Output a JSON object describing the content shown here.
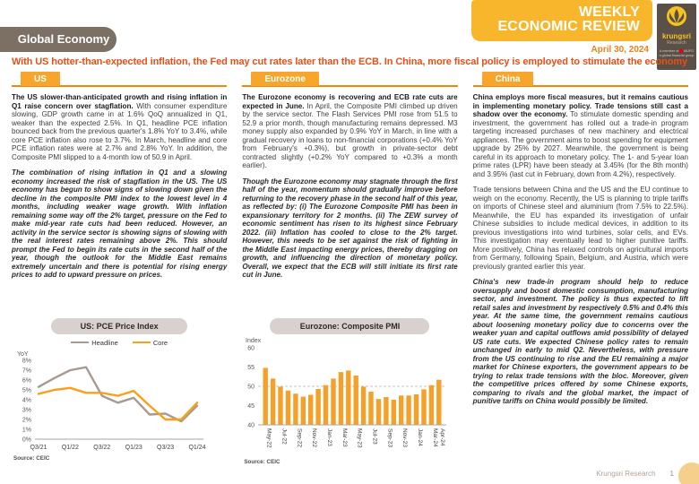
{
  "header": {
    "badge": "Global Economy",
    "banner_line1": "WEEKLY",
    "banner_line2": "ECONOMIC REVIEW",
    "date": "April 30, 2024",
    "headline": "With US hotter-than-expected inflation, the Fed may cut rates later than the ECB. In China, more fiscal policy is employed to stimulate the economy",
    "logo": {
      "brand": "krungsri",
      "sub": "Research",
      "tagline_prefix": "A member of",
      "tagline_brand": "MUFG",
      "tagline_suffix": "a global financial group"
    }
  },
  "columns": {
    "us": {
      "tab": "US",
      "p1_lead": "The US slower-than-anticipated growth and rising inflation in Q1 raise concern over stagflation.",
      "p1_rest": "With consumer expenditure slowing, GDP growth came in at 1.6% QoQ annualized in Q1, weaker than the expected 2.5%. In Q1, headline PCE inflation bounced back from the previous quarter's 1.8% YoY to 3.4%, while core PCE inflation also rose to 3.7%. In March, headline and core PCE inflation rates were at 2.7% and 2.8% YoY. In addition, the Composite PMI slipped to a 4-month low of 50.9 in April.",
      "p2": "The combination of rising inflation in Q1 and a slowing economy increased the risk of stagflation in the US. The US economy has begun to show signs of slowing down given the decline in the composite PMI index to the lowest level in 4 months, including weaker wage growth. With inflation remaining some way off the 2% target, pressure on the Fed to make mid-year rate cuts had been reduced. However, an activity in the service sector is showing signs of slowing with the real interest rates remaining above 2%. This should prompt the Fed to begin its rate cuts in the second half of the year, though the outlook for the Middle East remains extremely uncertain and there is potential for rising energy prices to add to upward pressure on prices."
    },
    "eurozone": {
      "tab": "Eurozone",
      "p1_lead": "The Eurozone economy is recovering and ECB rate cuts are expected in June.",
      "p1_rest": "In April, the Composite PMI climbed up driven by the service sector. The Flash Services PMI rose from 51.5 to 52.9 a prior month, though manufacturing remains depressed. M3 money supply also expanded by 0.9% YoY in March, in line with a gradual recovery in loans to non-financial corporations (+0.4% YoY from February's +0.3%), but growth in private-sector debt contracted slightly (+0.2% YoY compared to +0.3% a month earlier).",
      "p2": "Though the Eurozone economy may stagnate through the first half of the year, momentum should gradually improve before returning to the recovery phase in the second half of this year, as reflected by: (i) The Eurozone Composite PMI has been in expansionary territory for 2 months. (ii) The ZEW survey of economic sentiment has risen to its highest since February 2022. (iii) Inflation has cooled to close to the 2% target. However, this needs to be set against the risk of fighting in the Middle East impacting energy prices, thereby dragging on growth, and influencing the direction of monetary policy. Overall, we expect that the ECB will still initiate its first rate cut in June."
    },
    "china": {
      "tab": "China",
      "p1_lead": "China employs more fiscal measures, but it remains cautious in implementing monetary policy. Trade tensions still cast a shadow over the economy.",
      "p1_rest": "To stimulate domestic spending and investment, the government has rolled out a trade-in program targeting increased purchases of new machinery and electrical appliances. The government aims to boost spending for equipment upgrade by 25% by 2027. Meanwhile, the government is being careful in its approach to monetary policy. The 1- and 5-year loan prime rates (LPR) have been steady at 3.45% (for the 8th month) and 3.95% (last cut in February, down from 4.2%), respectively.",
      "p2": "Trade tensions between China and the US and the EU continue to weigh on the economy. Recently, the US is planning to triple tariffs on imports of Chinese steel and aluminium (from 7.5% to 22.5%). Meanwhile, the EU has expanded its investigation of unfair Chinese subsidies to include medical devices, in addition to its previous investigations into wind turbines, solar cells, and EVs. This investigation may eventually lead to higher punitive tariffs. More positively, China has relaxed controls on agricultural imports from Germany, following Spain, Belgium, and Austria, which were previously granted earlier this year.",
      "p3": "China's new trade-in program should help to reduce oversupply and boost domestic consumption, manufacturing sector, and investment. The policy is thus expected to lift retail sales and investment by respectively 0.5% and 0.4% this year. At the same time, the government remains cautious about loosening monetary policy due to concerns over the weaker yuan and capital outflows amid possibility of delayed US rate cuts. We expected Chinese policy rates to remain unchanged in early to mid Q2. Nevertheless, with pressure from the US continuing to rise and the EU remaining a major market for Chinese exporters, the government appears to be trying to relax trade tensions with the bloc. Moreover, given the competitive prices offered by some Chinese exports, comparing to rivals and the global market, the impact of punitive tariffs on China would possibly be limited."
    }
  },
  "footer": {
    "brand": "Krungsri Research",
    "page": "1"
  },
  "colors": {
    "banner_yellow": "#F8B62C",
    "tab_yellow": "#F8A52B",
    "tab_underline": "#F08A00",
    "headline_red": "#E2511A",
    "badge_brown": "#7C7065",
    "logo_dark": "#5B5047",
    "headline_series": "#A79A93",
    "core_series": "#F7A11B",
    "bar_orange": "#F5A029",
    "pill_gray": "#D8D1CD"
  },
  "chart_data": [
    {
      "type": "line",
      "title": "US: PCE Price Index",
      "unit_label": "YoY",
      "x": [
        "Q3/21",
        "Q4/21",
        "Q1/22",
        "Q2/22",
        "Q3/22",
        "Q4/22",
        "Q1/23",
        "Q2/23",
        "Q3/23",
        "Q4/23",
        "Q1/24"
      ],
      "x_tick_labels": [
        "Q3/21",
        "Q1/22",
        "Q3/22",
        "Q1/23",
        "Q3/23",
        "Q1/24"
      ],
      "series": [
        {
          "name": "Headline",
          "color": "#A79A93",
          "values": [
            5.3,
            6.2,
            7.0,
            7.3,
            4.4,
            3.7,
            4.2,
            2.5,
            2.6,
            1.8,
            3.4
          ]
        },
        {
          "name": "Core",
          "color": "#F7A11B",
          "values": [
            4.6,
            5.0,
            5.2,
            4.7,
            4.7,
            4.4,
            4.9,
            3.4,
            2.0,
            2.0,
            3.7
          ]
        }
      ],
      "ylim": [
        0,
        8
      ],
      "ytick_step": 1,
      "ytick_suffix": "%",
      "grid": false,
      "legend_position": "top",
      "source": "Source: CEIC"
    },
    {
      "type": "bar",
      "title": "Eurozone: Composite PMI",
      "unit_label": "Index",
      "categories": [
        "May-22",
        "Jun-22",
        "Jul-22",
        "Aug-22",
        "Sep-22",
        "Oct-22",
        "Nov-22",
        "Dec-22",
        "Jan-23",
        "Feb-23",
        "Mar-23",
        "Apr-23",
        "May-23",
        "Jun-23",
        "Jul-23",
        "Aug-23",
        "Sep-23",
        "Oct-23",
        "Nov-23",
        "Dec-23",
        "Jan-24",
        "Feb-24",
        "Mar-24",
        "Apr-24"
      ],
      "x_tick_labels": [
        "May-22",
        "Jul-22",
        "Sep-22",
        "Nov-22",
        "Jan-23",
        "Mar-23",
        "May-23",
        "Jul-23",
        "Sep-23",
        "Nov-23",
        "Jan-24",
        "Mar-24",
        "Apr-24"
      ],
      "values": [
        54.8,
        52.0,
        49.9,
        48.9,
        48.1,
        47.3,
        47.8,
        49.3,
        50.3,
        52.0,
        53.7,
        54.1,
        52.8,
        49.9,
        48.6,
        46.7,
        47.2,
        46.5,
        47.6,
        47.6,
        47.9,
        49.2,
        50.3,
        51.7
      ],
      "bar_color": "#F5A029",
      "ylim": [
        40,
        60
      ],
      "ytick_step": 5,
      "ref_line": 50,
      "grid": false,
      "source": "Source: CEIC"
    }
  ]
}
